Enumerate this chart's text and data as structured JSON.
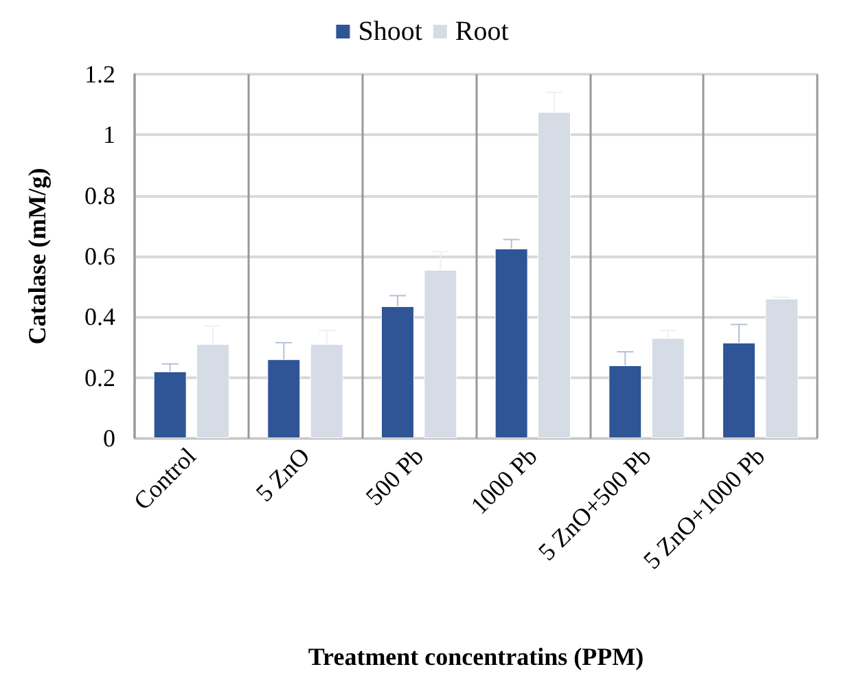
{
  "chart_data": {
    "type": "bar",
    "xlabel": "Treatment concentratins (PPM)",
    "ylabel": "Catalase (mM/g)",
    "categories": [
      "Control",
      "5 ZnO",
      "500 Pb",
      "1000 Pb",
      "5 ZnO+500 Pb",
      "5 ZnO+1000 Pb"
    ],
    "series": [
      {
        "name": "Shoot",
        "color": "#2f5597",
        "values": [
          0.22,
          0.26,
          0.435,
          0.625,
          0.24,
          0.315
        ],
        "errors": [
          [
            0.22,
            0.245
          ],
          [
            0.26,
            0.315
          ],
          [
            0.435,
            0.47
          ],
          [
            0.625,
            0.655
          ],
          [
            0.24,
            0.285
          ],
          [
            0.315,
            0.375
          ]
        ]
      },
      {
        "name": "Root",
        "color": "#d6dce5",
        "values": [
          0.31,
          0.31,
          0.555,
          1.075,
          0.33,
          0.46
        ],
        "errors": [
          [
            0.31,
            0.37
          ],
          [
            0.31,
            0.355
          ],
          [
            0.555,
            0.615
          ],
          [
            1.075,
            1.14
          ],
          [
            0.33,
            0.355
          ],
          [
            0.46,
            0.465
          ]
        ]
      }
    ],
    "ylim": [
      0,
      1.2
    ],
    "yticks": [
      0,
      0.2,
      0.4,
      0.6,
      0.8,
      1,
      1.2
    ],
    "grid": true,
    "legend": "top"
  }
}
